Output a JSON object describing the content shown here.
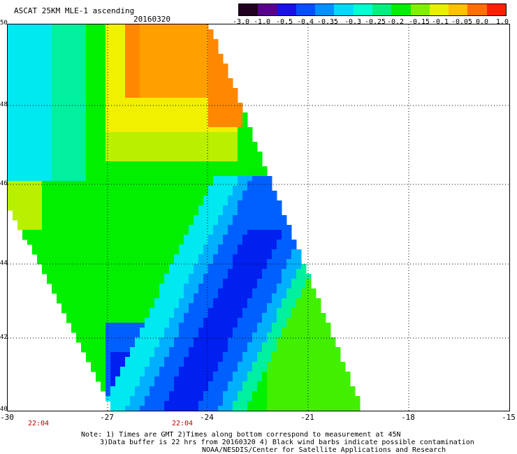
{
  "header": {
    "title": "ASCAT 25KM MLE-1 ascending",
    "date": "20160320"
  },
  "colorbar": {
    "tick_labels": [
      "-3.0",
      "-1.0",
      "-0.5",
      "-0.4",
      "-0.35",
      "-0.3",
      "-0.25",
      "-0.2",
      "-0.15",
      "-0.1",
      "-0.05",
      "0.0",
      "1.0"
    ],
    "colors": [
      "#200020",
      "#5a0090",
      "#1a10e8",
      "#0050ff",
      "#0090ff",
      "#00d8ff",
      "#00ffd0",
      "#00f080",
      "#00ee00",
      "#80f000",
      "#e8f000",
      "#ffc000",
      "#ff7000",
      "#ff2000"
    ]
  },
  "axes": {
    "lat_labels": [
      "50",
      "48",
      "46",
      "44",
      "42",
      "40"
    ],
    "lon_labels": [
      "-30",
      "-27",
      "-24",
      "-21",
      "-18",
      "-15"
    ],
    "lat_range": [
      40,
      50
    ],
    "lon_range": [
      -30,
      -15
    ],
    "times": [
      "22:04",
      "22:04"
    ]
  },
  "swath": {
    "description_values": "MLE-1 values by region",
    "palette": {
      "orange": "#ffa000",
      "dark_orange": "#ff8800",
      "yellow": "#f0f000",
      "yellow_green": "#b8f000",
      "green": "#40f000",
      "bright_green": "#00f000",
      "teal_green": "#00f0a0",
      "cyan": "#00e8f0",
      "light_blue": "#00b0ff",
      "blue": "#0060ff",
      "deep_blue": "#0020f0"
    }
  },
  "notes": [
    "Note: 1) Times are GMT 2)Times along bottom correspond to measurement at 45N",
    "3)Data buffer is 22 hrs from 20160320 4) Black wind barbs indicate possible contamination",
    "NOAA/NESDIS/Center for Satellite Applications and Research"
  ]
}
